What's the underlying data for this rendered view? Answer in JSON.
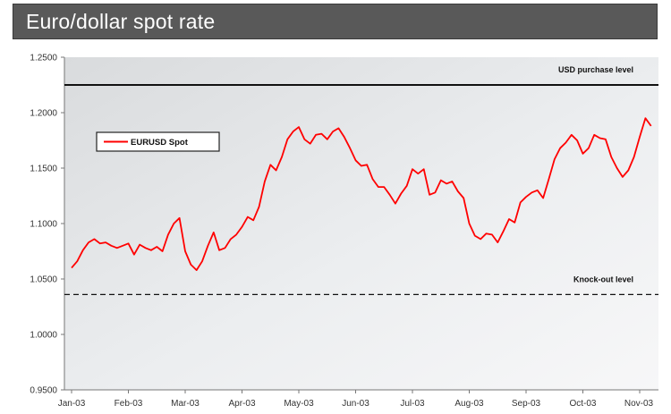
{
  "title": "Euro/dollar spot rate",
  "chart_data": {
    "type": "line",
    "title": "Euro/dollar spot rate",
    "ylim": [
      0.95,
      1.25
    ],
    "y_ticks": [
      "1.2500",
      "1.2000",
      "1.1500",
      "1.1000",
      "1.0500",
      "1.0000",
      "0.9500"
    ],
    "y_tick_values": [
      1.25,
      1.2,
      1.15,
      1.1,
      1.05,
      1.0,
      0.95
    ],
    "x_ticks": [
      "Jan-03",
      "Feb-03",
      "Mar-03",
      "Apr-03",
      "May-03",
      "Jun-03",
      "Jul-03",
      "Aug-03",
      "Sep-03",
      "Oct-03",
      "Nov-03"
    ],
    "grid": false,
    "legend": {
      "position": "upper-left",
      "entries": [
        "EURUSD Spot"
      ]
    },
    "colors": {
      "series": "#ff0000",
      "title_bg": "#595959",
      "plot_bg": "#e6e8ea"
    },
    "reference_lines": [
      {
        "label": "USD purchase level",
        "value": 1.225,
        "style": "solid"
      },
      {
        "label": "Knock-out level",
        "value": 1.036,
        "style": "dashed"
      }
    ],
    "series": [
      {
        "name": "EURUSD Spot",
        "x_index": [
          0,
          0.1,
          0.2,
          0.3,
          0.4,
          0.5,
          0.6,
          0.7,
          0.8,
          0.9,
          1.0,
          1.1,
          1.2,
          1.3,
          1.4,
          1.5,
          1.6,
          1.7,
          1.8,
          1.9,
          2.0,
          2.1,
          2.2,
          2.3,
          2.4,
          2.5,
          2.6,
          2.7,
          2.8,
          2.9,
          3.0,
          3.1,
          3.2,
          3.3,
          3.4,
          3.5,
          3.6,
          3.7,
          3.8,
          3.9,
          4.0,
          4.1,
          4.2,
          4.3,
          4.4,
          4.5,
          4.6,
          4.7,
          4.8,
          4.9,
          5.0,
          5.1,
          5.2,
          5.3,
          5.4,
          5.5,
          5.6,
          5.7,
          5.8,
          5.9,
          6.0,
          6.1,
          6.2,
          6.3,
          6.4,
          6.5,
          6.6,
          6.7,
          6.8,
          6.9,
          7.0,
          7.1,
          7.2,
          7.3,
          7.4,
          7.5,
          7.6,
          7.7,
          7.8,
          7.9,
          8.0,
          8.1,
          8.2,
          8.3,
          8.4,
          8.5,
          8.6,
          8.7,
          8.8,
          8.9,
          9.0,
          9.1,
          9.2,
          9.3,
          9.4,
          9.5,
          9.6,
          9.7,
          9.8,
          9.9,
          10.0,
          10.1,
          10.2
        ],
        "values": [
          1.06,
          1.066,
          1.076,
          1.083,
          1.086,
          1.082,
          1.083,
          1.08,
          1.078,
          1.08,
          1.082,
          1.072,
          1.081,
          1.078,
          1.076,
          1.079,
          1.075,
          1.09,
          1.1,
          1.105,
          1.075,
          1.063,
          1.058,
          1.066,
          1.08,
          1.092,
          1.076,
          1.078,
          1.086,
          1.09,
          1.097,
          1.106,
          1.103,
          1.115,
          1.138,
          1.153,
          1.148,
          1.16,
          1.176,
          1.183,
          1.187,
          1.176,
          1.172,
          1.18,
          1.181,
          1.176,
          1.183,
          1.186,
          1.178,
          1.168,
          1.157,
          1.152,
          1.153,
          1.14,
          1.133,
          1.133,
          1.126,
          1.118,
          1.127,
          1.134,
          1.149,
          1.145,
          1.149,
          1.126,
          1.128,
          1.139,
          1.136,
          1.138,
          1.129,
          1.123,
          1.1,
          1.089,
          1.086,
          1.091,
          1.09,
          1.083,
          1.093,
          1.104,
          1.101,
          1.119,
          1.124,
          1.128,
          1.13,
          1.123,
          1.14,
          1.158,
          1.168,
          1.173,
          1.18,
          1.175,
          1.163,
          1.168,
          1.18,
          1.177,
          1.176,
          1.16,
          1.15,
          1.142,
          1.148,
          1.16,
          1.178,
          1.195,
          1.188
        ]
      }
    ]
  }
}
